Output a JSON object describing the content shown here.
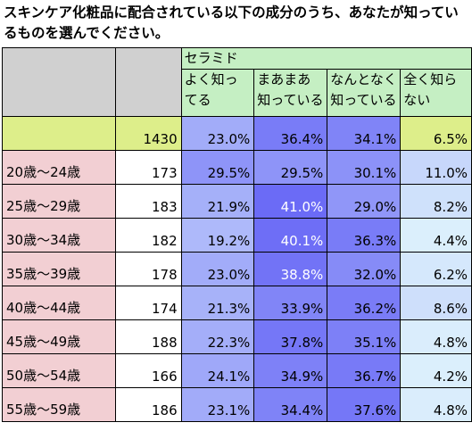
{
  "title": "スキンケア化粧品に配合されている以下の成分のうち、あなたが知っているものを選んでください。",
  "chart_data": {
    "type": "table",
    "group_header": "セラミド",
    "columns": [
      "よく知ってる",
      "まあまあ知っている",
      "なんとなく知っている",
      "全く知らない"
    ],
    "rows": [
      {
        "label": "",
        "n": "1430",
        "values": [
          "23.0%",
          "36.4%",
          "34.1%",
          "6.5%"
        ]
      },
      {
        "label": "20歳～24歳",
        "n": "173",
        "values": [
          "29.5%",
          "29.5%",
          "30.1%",
          "11.0%"
        ]
      },
      {
        "label": "25歳～29歳",
        "n": "183",
        "values": [
          "21.9%",
          "41.0%",
          "29.0%",
          "8.2%"
        ]
      },
      {
        "label": "30歳～34歳",
        "n": "182",
        "values": [
          "19.2%",
          "40.1%",
          "36.3%",
          "4.4%"
        ]
      },
      {
        "label": "35歳～39歳",
        "n": "178",
        "values": [
          "23.0%",
          "38.8%",
          "32.0%",
          "6.2%"
        ]
      },
      {
        "label": "40歳～44歳",
        "n": "174",
        "values": [
          "21.3%",
          "33.9%",
          "36.2%",
          "8.6%"
        ]
      },
      {
        "label": "45歳～49歳",
        "n": "188",
        "values": [
          "22.3%",
          "37.8%",
          "35.1%",
          "4.8%"
        ]
      },
      {
        "label": "50歳～54歳",
        "n": "166",
        "values": [
          "24.1%",
          "34.9%",
          "36.7%",
          "4.2%"
        ]
      },
      {
        "label": "55歳～59歳",
        "n": "186",
        "values": [
          "23.1%",
          "34.4%",
          "37.6%",
          "4.8%"
        ]
      }
    ],
    "colors": {
      "header_green": "#c5efc3",
      "header_gray": "#d0d0d0",
      "age_label_pink": "#f2cfd3",
      "total_label_yellow": "#ddee8a",
      "scale_low": "#dcf0fc",
      "scale_high": "#6b6bf6"
    }
  }
}
